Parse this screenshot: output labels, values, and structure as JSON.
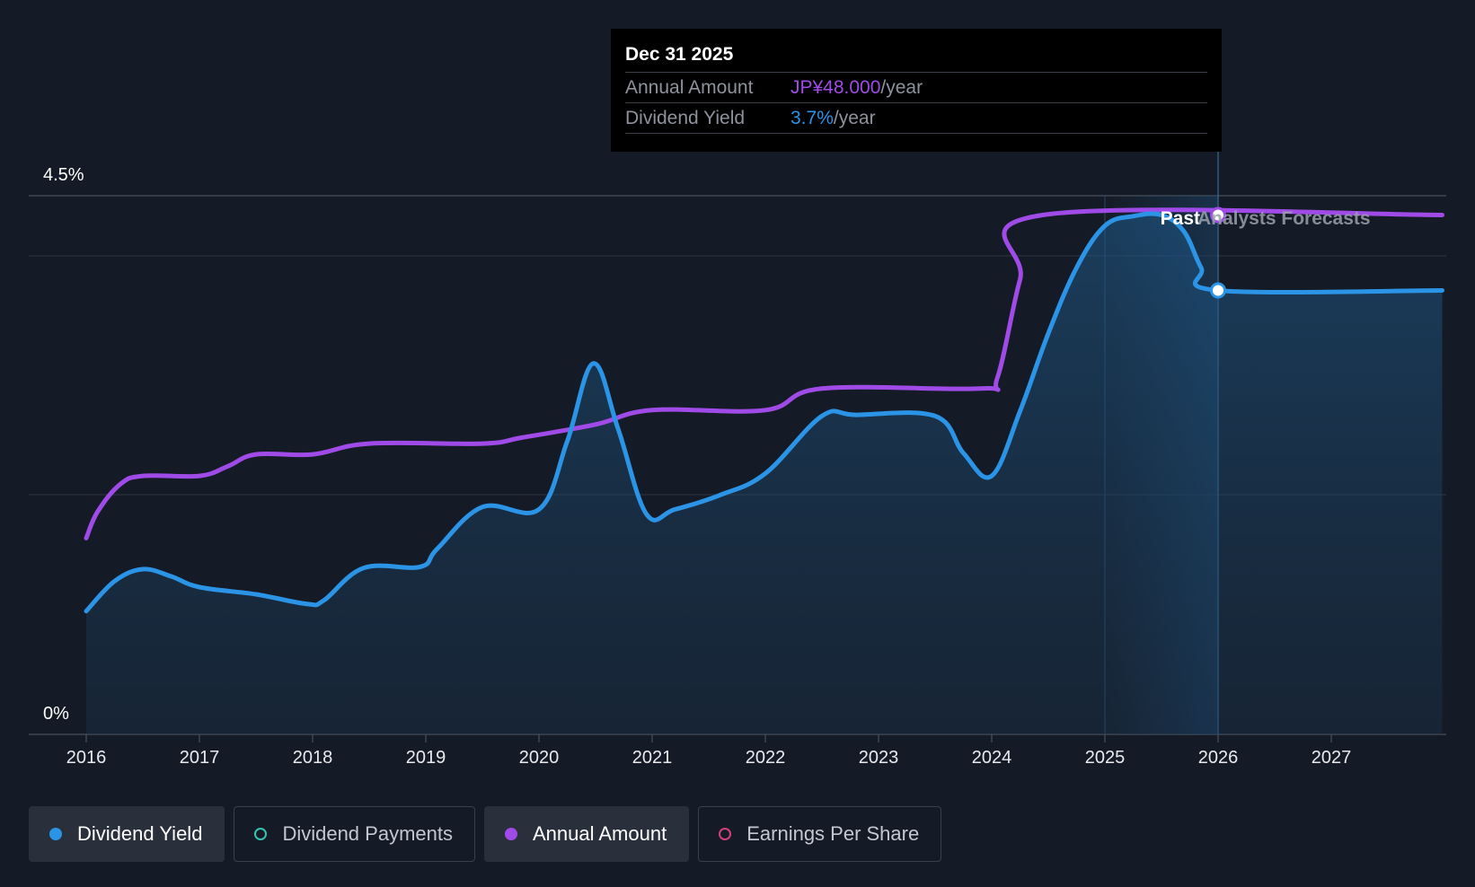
{
  "colors": {
    "yield": "#2b94e6",
    "annual": "#a04be8",
    "payments": "#38c2b0",
    "eps": "#d2407a"
  },
  "tooltip": {
    "date": "Dec 31 2025",
    "annual_label": "Annual Amount",
    "annual_value": "JP¥48.000",
    "annual_unit": "/year",
    "yield_label": "Dividend Yield",
    "yield_value": "3.7%",
    "yield_unit": "/year"
  },
  "legend": [
    {
      "label": "Dividend Yield",
      "active": true,
      "filled": true,
      "color": "#2b94e6"
    },
    {
      "label": "Dividend Payments",
      "active": false,
      "filled": false,
      "color": "#38c2b0"
    },
    {
      "label": "Annual Amount",
      "active": true,
      "filled": true,
      "color": "#a04be8"
    },
    {
      "label": "Earnings Per Share",
      "active": false,
      "filled": false,
      "color": "#d2407a"
    }
  ],
  "chart_data": {
    "type": "line",
    "x_ticks": [
      "2016",
      "2017",
      "2018",
      "2019",
      "2020",
      "2021",
      "2022",
      "2023",
      "2024",
      "2025",
      "2026",
      "2027"
    ],
    "y_tick_labels": [
      "4.5%",
      "0%"
    ],
    "ylim": [
      0,
      4.5
    ],
    "xlim": [
      2015.5,
      2027.98
    ],
    "region_labels": {
      "past": "Past",
      "forecast": "Analysts Forecasts"
    },
    "forecast_start": 2026.0,
    "series": [
      {
        "name": "Dividend Yield",
        "unit": "%",
        "points": [
          [
            2016.0,
            1.03
          ],
          [
            2016.25,
            1.28
          ],
          [
            2016.5,
            1.38
          ],
          [
            2016.75,
            1.32
          ],
          [
            2017.0,
            1.23
          ],
          [
            2017.5,
            1.17
          ],
          [
            2017.95,
            1.09
          ],
          [
            2018.1,
            1.12
          ],
          [
            2018.45,
            1.39
          ],
          [
            2018.95,
            1.4
          ],
          [
            2019.1,
            1.55
          ],
          [
            2019.5,
            1.9
          ],
          [
            2020.0,
            1.88
          ],
          [
            2020.25,
            2.45
          ],
          [
            2020.48,
            3.1
          ],
          [
            2020.7,
            2.55
          ],
          [
            2020.95,
            1.84
          ],
          [
            2021.2,
            1.88
          ],
          [
            2021.6,
            2.0
          ],
          [
            2022.0,
            2.18
          ],
          [
            2022.5,
            2.66
          ],
          [
            2022.8,
            2.67
          ],
          [
            2023.5,
            2.66
          ],
          [
            2023.75,
            2.35
          ],
          [
            2024.0,
            2.16
          ],
          [
            2024.25,
            2.7
          ],
          [
            2024.5,
            3.35
          ],
          [
            2024.75,
            3.9
          ],
          [
            2025.0,
            4.25
          ],
          [
            2025.25,
            4.33
          ],
          [
            2025.5,
            4.34
          ],
          [
            2025.7,
            4.2
          ],
          [
            2025.85,
            3.9
          ],
          [
            2026.0,
            3.71
          ],
          [
            2027.98,
            3.71
          ]
        ]
      },
      {
        "name": "Annual Amount",
        "unit": "%-scaled",
        "points": [
          [
            2016.0,
            1.64
          ],
          [
            2016.1,
            1.86
          ],
          [
            2016.3,
            2.09
          ],
          [
            2016.5,
            2.16
          ],
          [
            2017.0,
            2.16
          ],
          [
            2017.25,
            2.24
          ],
          [
            2017.5,
            2.34
          ],
          [
            2018.0,
            2.34
          ],
          [
            2018.5,
            2.43
          ],
          [
            2019.5,
            2.43
          ],
          [
            2019.85,
            2.48
          ],
          [
            2020.5,
            2.59
          ],
          [
            2021.0,
            2.71
          ],
          [
            2022.0,
            2.71
          ],
          [
            2022.5,
            2.89
          ],
          [
            2023.9,
            2.89
          ],
          [
            2024.05,
            2.98
          ],
          [
            2024.25,
            3.8
          ],
          [
            2024.45,
            4.34
          ],
          [
            2027.98,
            4.34
          ]
        ]
      }
    ]
  }
}
